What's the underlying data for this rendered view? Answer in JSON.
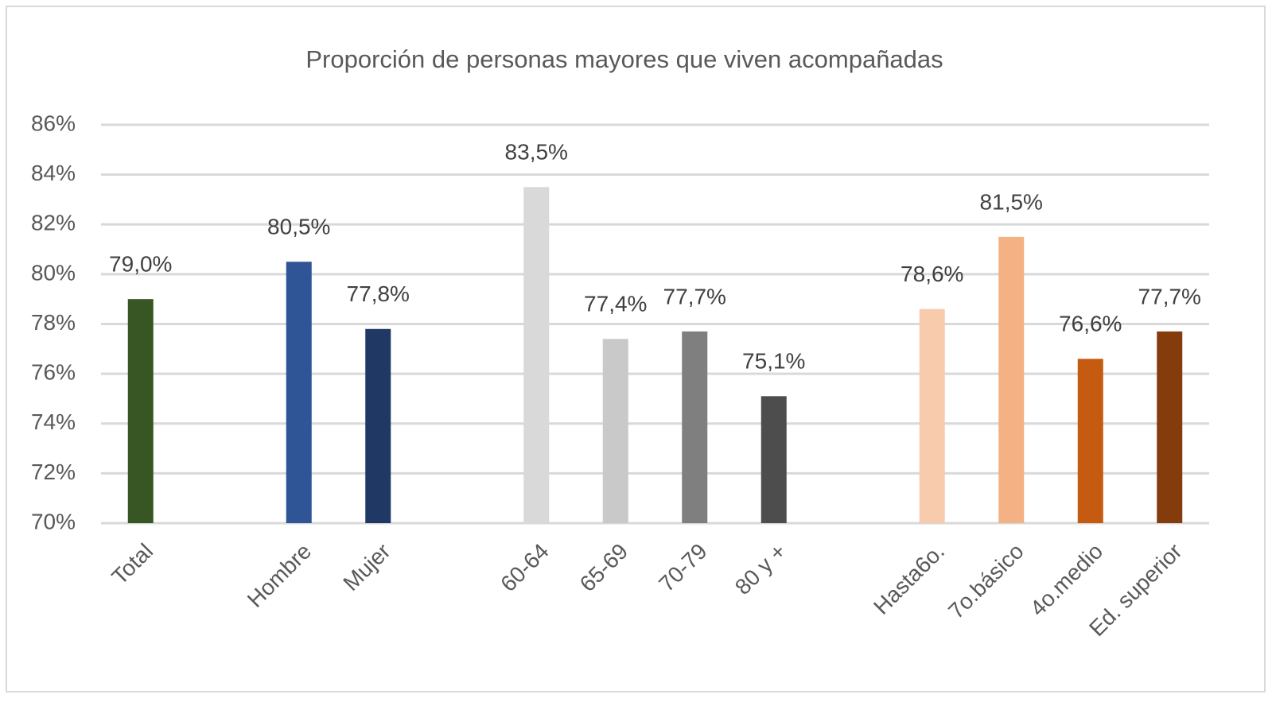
{
  "chart_data": {
    "type": "bar",
    "title": "Proporción  de personas mayores que viven acompañadas",
    "categories": [
      "Total",
      null,
      "Hombre",
      "Mujer",
      null,
      "60-64",
      "65-69",
      "70-79",
      "80 y +",
      null,
      "Hasta6o.",
      "7o.básico",
      "4o.medio",
      "Ed. superior"
    ],
    "values": [
      79.0,
      null,
      80.5,
      77.8,
      null,
      83.5,
      77.4,
      77.7,
      75.1,
      null,
      78.6,
      81.5,
      76.6,
      77.7
    ],
    "value_labels": [
      "79,0%",
      null,
      "80,5%",
      "77,8%",
      null,
      "83,5%",
      "77,4%",
      "77,7%",
      "75,1%",
      null,
      "78,6%",
      "81,5%",
      "76,6%",
      "77,7%"
    ],
    "colors": [
      "#375623",
      null,
      "#2f5597",
      "#203864",
      null,
      "#d9d9d9",
      "#c9c9c9",
      "#7f7f7f",
      "#4d4d4d",
      null,
      "#f8cbad",
      "#f4b183",
      "#c55a11",
      "#843c0c"
    ],
    "ylim": [
      70,
      86
    ],
    "yticks": [
      {
        "value": 70,
        "label": "70%"
      },
      {
        "value": 72,
        "label": "72%"
      },
      {
        "value": 74,
        "label": "74%"
      },
      {
        "value": 76,
        "label": "76%"
      },
      {
        "value": 78,
        "label": "78%"
      },
      {
        "value": 80,
        "label": "80%"
      },
      {
        "value": 82,
        "label": "82%"
      },
      {
        "value": 84,
        "label": "84%"
      },
      {
        "value": 86,
        "label": "86%"
      }
    ],
    "grid": true
  }
}
